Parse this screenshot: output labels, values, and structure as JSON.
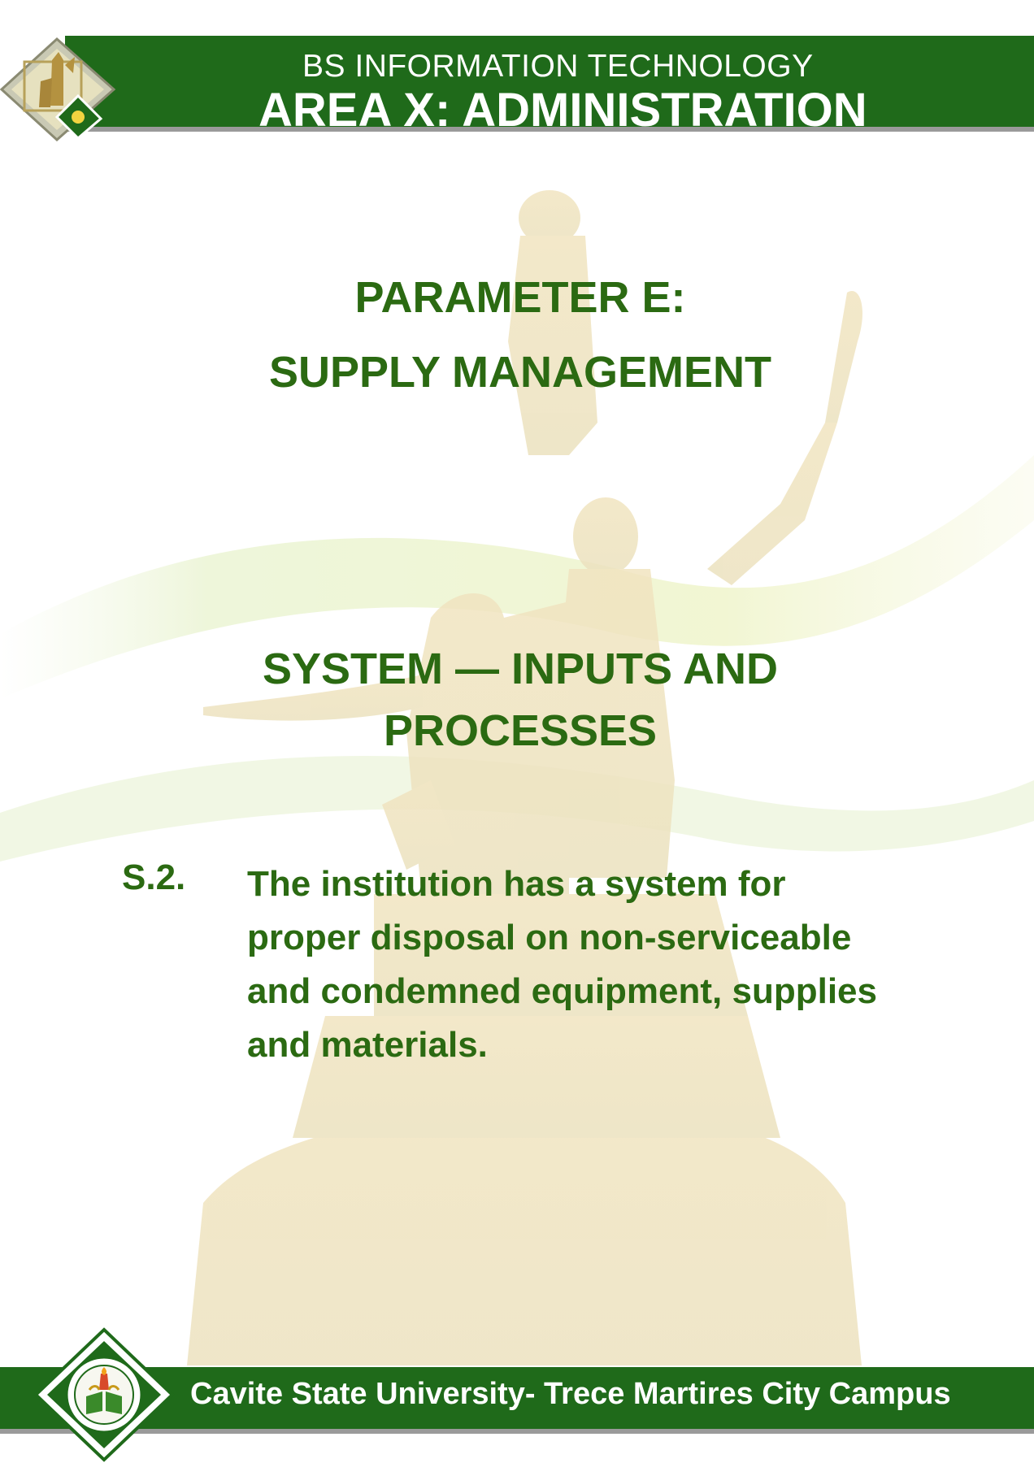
{
  "header": {
    "program": "BS INFORMATION TECHNOLOGY",
    "area": "AREA X: ADMINISTRATION"
  },
  "parameter": {
    "line1": "PARAMETER E:",
    "line2": "SUPPLY MANAGEMENT"
  },
  "system": {
    "line1": "SYSTEM — INPUTS AND",
    "line2": "PROCESSES"
  },
  "standard": {
    "number": "S.2.",
    "text": "The institution has a system for proper disposal on non-serviceable and condemned equipment, supplies and materials."
  },
  "footer": {
    "campus": "Cavite State University- Trece Martires City Campus"
  },
  "colors": {
    "bar_green": "#1f6a1a",
    "text_green": "#2b6a12"
  },
  "icons": {
    "top_logo": "monument-logo-icon",
    "bottom_seal": "university-seal-icon"
  }
}
